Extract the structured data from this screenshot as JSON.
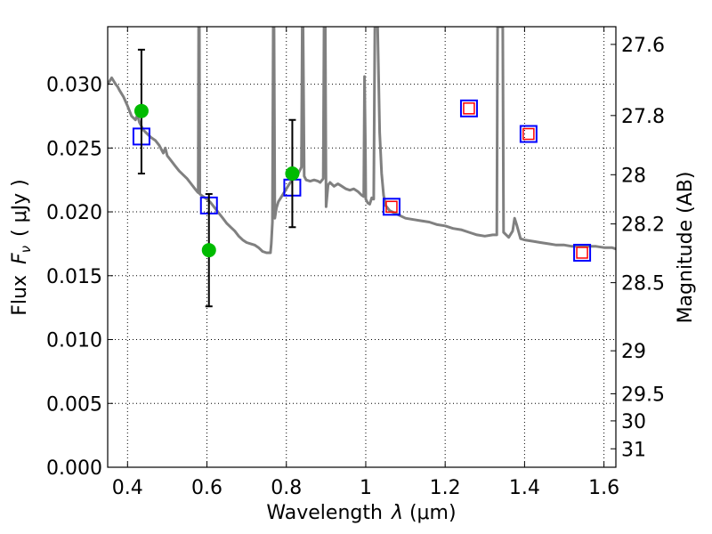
{
  "chart_data": {
    "type": "line",
    "x_axis": {
      "label_text": "Wavelength",
      "label_math": "λ",
      "label_unit": "(μm)",
      "range": [
        0.35,
        1.63
      ],
      "ticks": [
        0.4,
        0.6,
        0.8,
        1.0,
        1.2,
        1.4,
        1.6
      ],
      "tick_labels": [
        "0.4",
        "0.6",
        "0.8",
        "1",
        "1.2",
        "1.4",
        "1.6"
      ]
    },
    "y_axis_left": {
      "label_text": "Flux",
      "label_math": "F",
      "label_sub": "ν",
      "label_unit": "( μJy )",
      "range": [
        0.0,
        0.0345
      ],
      "ticks": [
        0.0,
        0.005,
        0.01,
        0.015,
        0.02,
        0.025,
        0.03
      ],
      "tick_labels": [
        "0.000",
        "0.005",
        "0.010",
        "0.015",
        "0.020",
        "0.025",
        "0.030"
      ]
    },
    "y_axis_right": {
      "label": "Magnitude (AB)",
      "ticks": [
        27.6,
        27.8,
        28.0,
        28.2,
        28.5,
        29.0,
        29.5,
        30.0,
        31.0
      ],
      "tick_labels": [
        "27.6",
        "27.8",
        "28",
        "28.2",
        "28.5",
        "29",
        "29.5",
        "30",
        "31"
      ]
    },
    "grid": true,
    "series": [
      {
        "kind": "line",
        "color": "#808080",
        "points": [
          [
            0.35,
            0.03
          ],
          [
            0.36,
            0.0305
          ],
          [
            0.37,
            0.03
          ],
          [
            0.375,
            0.0298
          ],
          [
            0.38,
            0.0295
          ],
          [
            0.39,
            0.029
          ],
          [
            0.4,
            0.0283
          ],
          [
            0.41,
            0.0275
          ],
          [
            0.42,
            0.0272
          ],
          [
            0.425,
            0.0276
          ],
          [
            0.43,
            0.027
          ],
          [
            0.44,
            0.0264
          ],
          [
            0.45,
            0.0261
          ],
          [
            0.46,
            0.0258
          ],
          [
            0.47,
            0.0256
          ],
          [
            0.48,
            0.0252
          ],
          [
            0.49,
            0.0246
          ],
          [
            0.495,
            0.025
          ],
          [
            0.5,
            0.0244
          ],
          [
            0.51,
            0.024
          ],
          [
            0.52,
            0.0236
          ],
          [
            0.53,
            0.0232
          ],
          [
            0.54,
            0.0229
          ],
          [
            0.55,
            0.0226
          ],
          [
            0.56,
            0.0222
          ],
          [
            0.57,
            0.0218
          ],
          [
            0.575,
            0.0216
          ],
          [
            0.578,
            0.0215
          ],
          [
            0.579,
            0.0345
          ],
          [
            0.581,
            0.0345
          ],
          [
            0.582,
            0.0214
          ],
          [
            0.59,
            0.0212
          ],
          [
            0.6,
            0.021
          ],
          [
            0.61,
            0.0207
          ],
          [
            0.62,
            0.0203
          ],
          [
            0.63,
            0.0199
          ],
          [
            0.64,
            0.0195
          ],
          [
            0.65,
            0.0191
          ],
          [
            0.66,
            0.0188
          ],
          [
            0.67,
            0.0185
          ],
          [
            0.68,
            0.0181
          ],
          [
            0.69,
            0.0178
          ],
          [
            0.7,
            0.0176
          ],
          [
            0.71,
            0.0175
          ],
          [
            0.72,
            0.0174
          ],
          [
            0.73,
            0.0172
          ],
          [
            0.74,
            0.0169
          ],
          [
            0.75,
            0.0168
          ],
          [
            0.76,
            0.0168
          ],
          [
            0.762,
            0.0175
          ],
          [
            0.765,
            0.0192
          ],
          [
            0.767,
            0.0345
          ],
          [
            0.769,
            0.0345
          ],
          [
            0.771,
            0.0195
          ],
          [
            0.775,
            0.0203
          ],
          [
            0.78,
            0.0208
          ],
          [
            0.79,
            0.0213
          ],
          [
            0.8,
            0.0218
          ],
          [
            0.81,
            0.0223
          ],
          [
            0.815,
            0.0225
          ],
          [
            0.82,
            0.0228
          ],
          [
            0.825,
            0.0232
          ],
          [
            0.83,
            0.023
          ],
          [
            0.838,
            0.0235
          ],
          [
            0.84,
            0.0345
          ],
          [
            0.842,
            0.0345
          ],
          [
            0.845,
            0.0228
          ],
          [
            0.85,
            0.0225
          ],
          [
            0.86,
            0.0224
          ],
          [
            0.87,
            0.0225
          ],
          [
            0.88,
            0.0224
          ],
          [
            0.885,
            0.0223
          ],
          [
            0.893,
            0.0226
          ],
          [
            0.895,
            0.0345
          ],
          [
            0.898,
            0.0345
          ],
          [
            0.9,
            0.0204
          ],
          [
            0.905,
            0.0221
          ],
          [
            0.91,
            0.0223
          ],
          [
            0.92,
            0.022
          ],
          [
            0.93,
            0.0222
          ],
          [
            0.94,
            0.022
          ],
          [
            0.95,
            0.0218
          ],
          [
            0.96,
            0.0217
          ],
          [
            0.97,
            0.0218
          ],
          [
            0.98,
            0.0216
          ],
          [
            0.99,
            0.0213
          ],
          [
            0.995,
            0.0212
          ],
          [
            0.997,
            0.0306
          ],
          [
            0.999,
            0.0255
          ],
          [
            1.0,
            0.021
          ],
          [
            1.005,
            0.0207
          ],
          [
            1.01,
            0.0206
          ],
          [
            1.015,
            0.0211
          ],
          [
            1.02,
            0.021
          ],
          [
            1.023,
            0.0345
          ],
          [
            1.03,
            0.0345
          ],
          [
            1.035,
            0.0262
          ],
          [
            1.04,
            0.023
          ],
          [
            1.045,
            0.0213
          ],
          [
            1.05,
            0.0205
          ],
          [
            1.06,
            0.0201
          ],
          [
            1.08,
            0.0198
          ],
          [
            1.1,
            0.0195
          ],
          [
            1.12,
            0.0194
          ],
          [
            1.14,
            0.0193
          ],
          [
            1.16,
            0.0192
          ],
          [
            1.18,
            0.019
          ],
          [
            1.2,
            0.0189
          ],
          [
            1.22,
            0.0187
          ],
          [
            1.24,
            0.0186
          ],
          [
            1.26,
            0.0184
          ],
          [
            1.28,
            0.0182
          ],
          [
            1.3,
            0.0181
          ],
          [
            1.32,
            0.0182
          ],
          [
            1.33,
            0.0182
          ],
          [
            1.332,
            0.0345
          ],
          [
            1.345,
            0.0345
          ],
          [
            1.347,
            0.0184
          ],
          [
            1.36,
            0.018
          ],
          [
            1.37,
            0.0185
          ],
          [
            1.375,
            0.0195
          ],
          [
            1.38,
            0.019
          ],
          [
            1.39,
            0.0179
          ],
          [
            1.4,
            0.0178
          ],
          [
            1.42,
            0.0177
          ],
          [
            1.44,
            0.0176
          ],
          [
            1.46,
            0.0175
          ],
          [
            1.48,
            0.0174
          ],
          [
            1.5,
            0.0174
          ],
          [
            1.52,
            0.0173
          ],
          [
            1.54,
            0.0173
          ],
          [
            1.56,
            0.0173
          ],
          [
            1.58,
            0.0173
          ],
          [
            1.6,
            0.0172
          ],
          [
            1.62,
            0.0172
          ],
          [
            1.63,
            0.0171
          ]
        ]
      },
      {
        "kind": "model-photometry",
        "marker": "open-square",
        "color": "#0000ff",
        "points": [
          [
            0.435,
            0.0259
          ],
          [
            0.605,
            0.0205
          ],
          [
            0.815,
            0.0219
          ],
          [
            1.065,
            0.0204
          ],
          [
            1.26,
            0.0281
          ],
          [
            1.41,
            0.0261
          ],
          [
            1.545,
            0.0168
          ]
        ]
      },
      {
        "kind": "upper-limits",
        "marker": "open-square",
        "color": "#ff0000",
        "points": [
          [
            1.065,
            0.0204
          ],
          [
            1.26,
            0.0281
          ],
          [
            1.41,
            0.0261
          ],
          [
            1.545,
            0.0168
          ]
        ]
      },
      {
        "kind": "observed-photometry",
        "marker": "filled-circle",
        "color": "#00bb00",
        "points": [
          {
            "x": 0.435,
            "y": 0.0279,
            "err_low": 0.023,
            "err_high": 0.0327
          },
          {
            "x": 0.605,
            "y": 0.017,
            "err_low": 0.0126,
            "err_high": 0.0214
          },
          {
            "x": 0.815,
            "y": 0.023,
            "err_low": 0.0188,
            "err_high": 0.0272
          }
        ]
      }
    ]
  }
}
